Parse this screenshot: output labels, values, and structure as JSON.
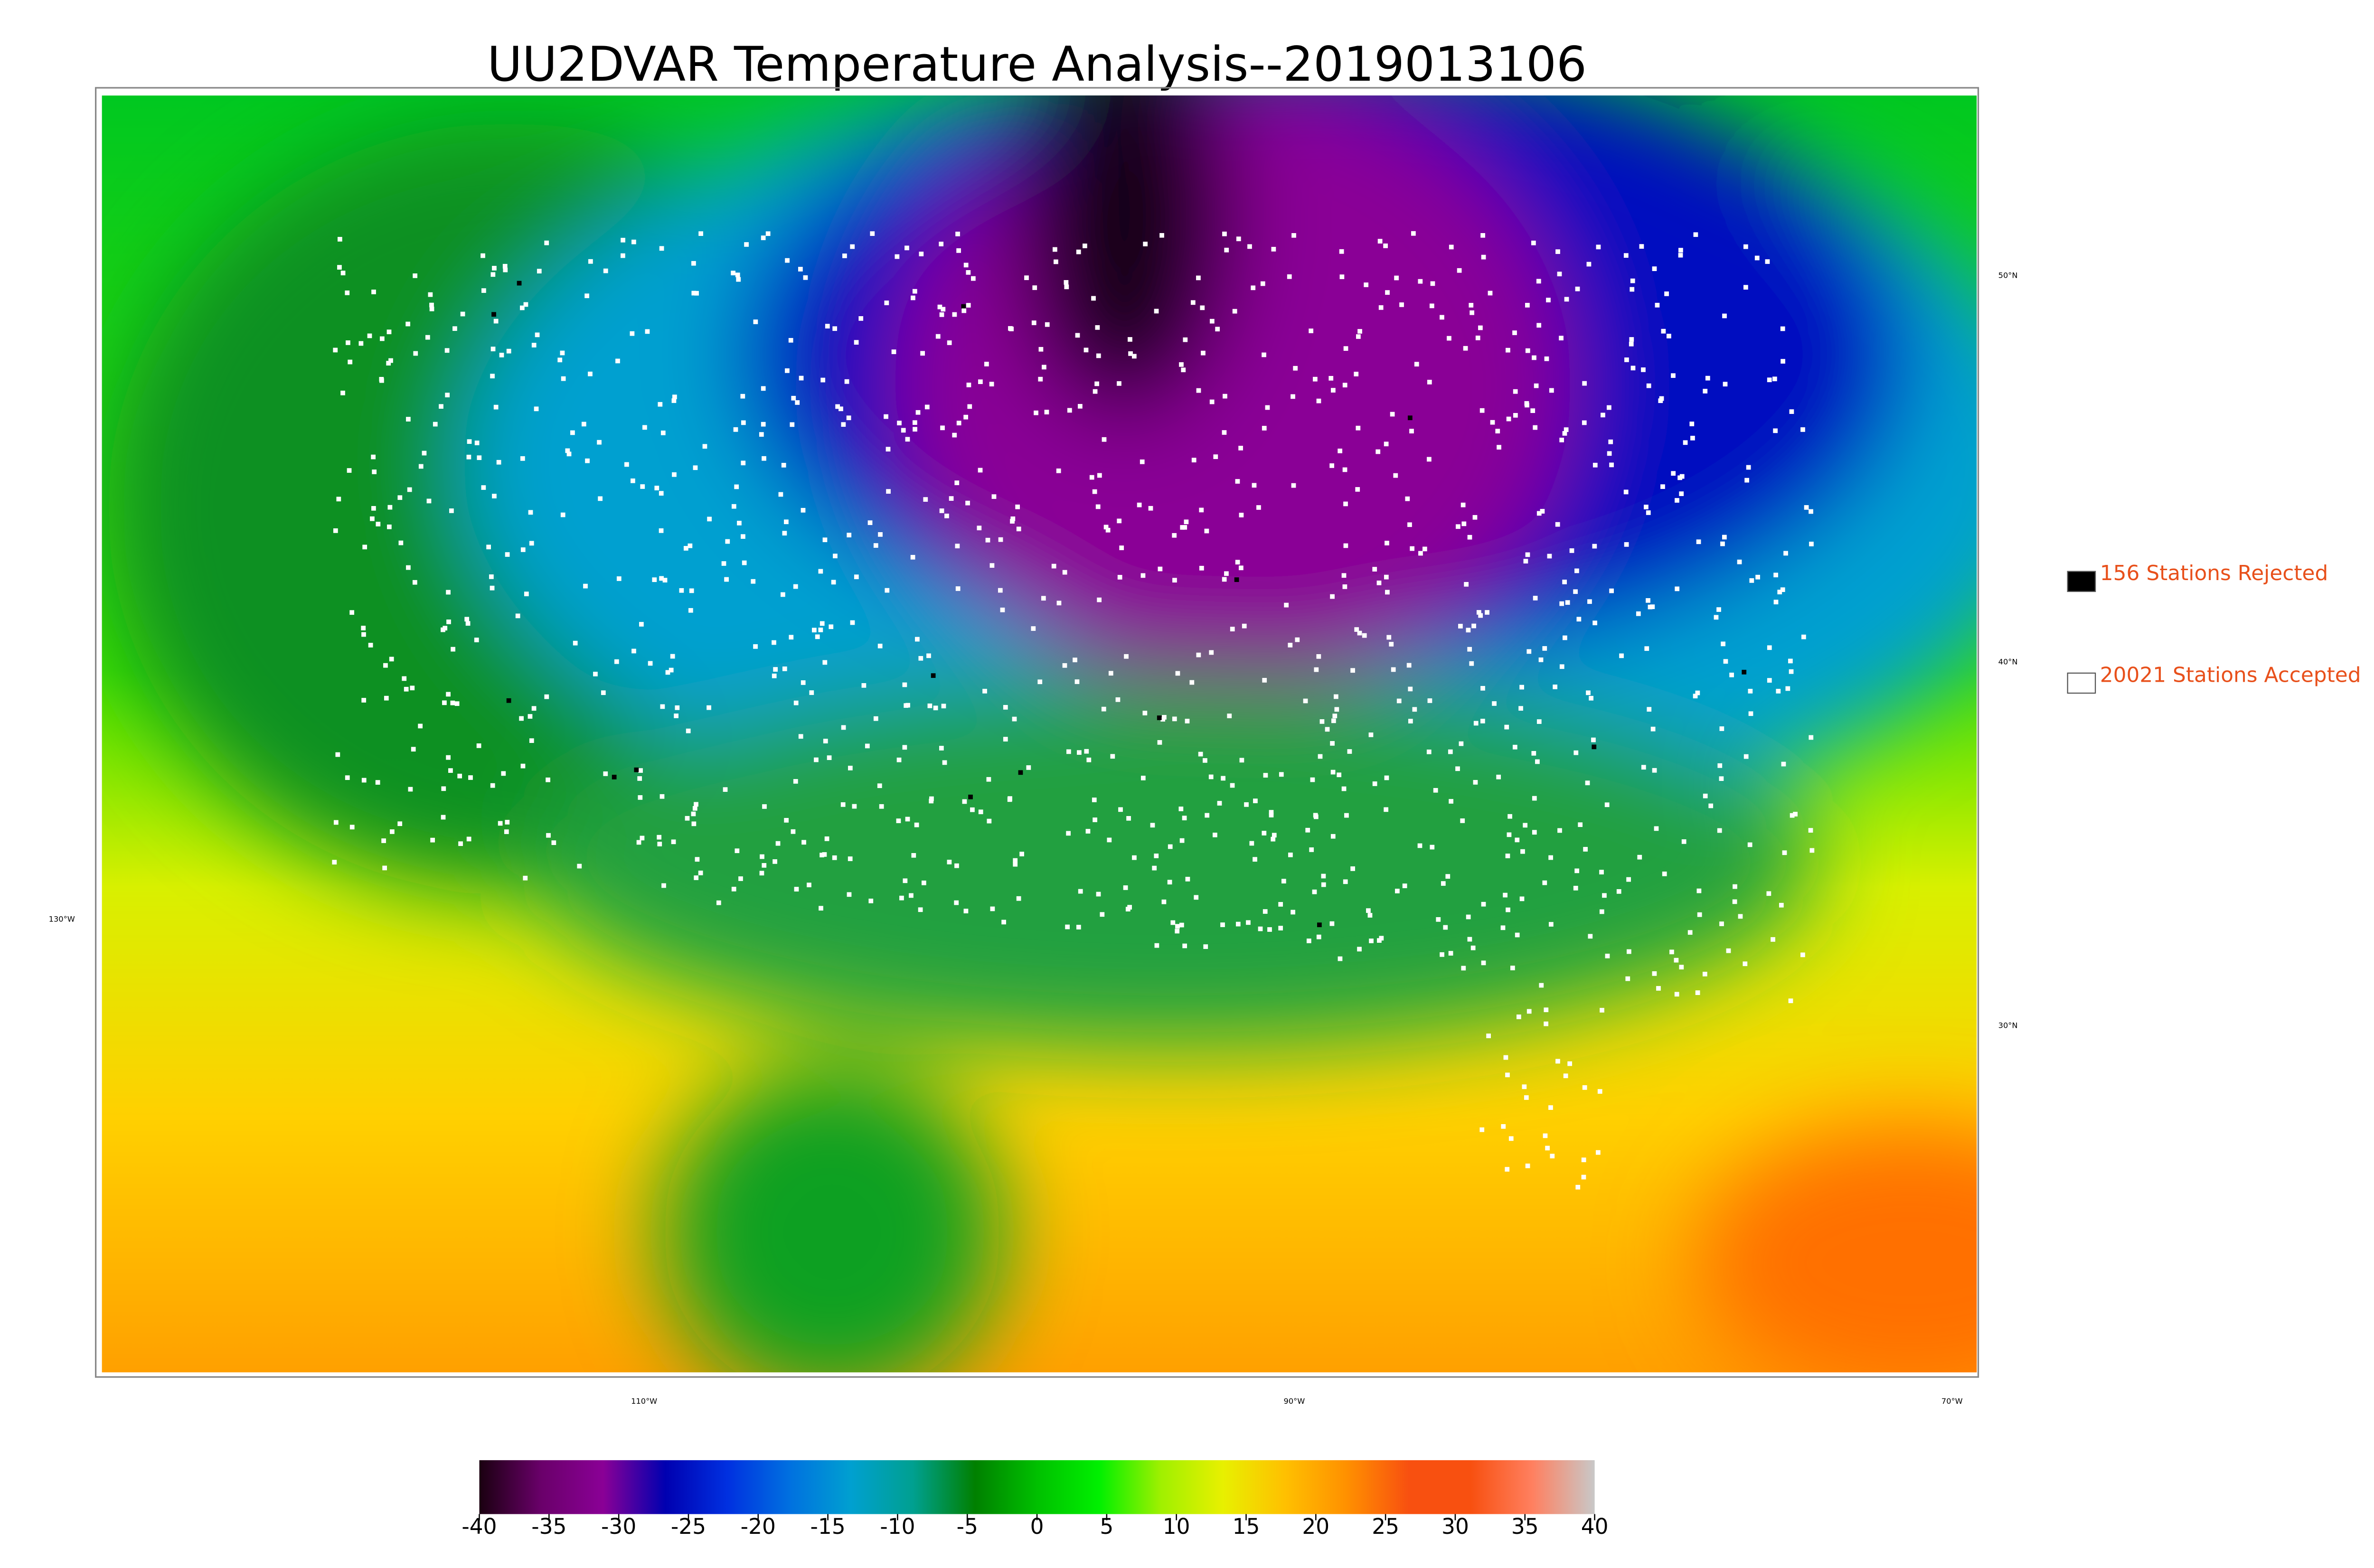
{
  "title": "UU2DVAR Temperature Analysis--2019013106",
  "map": {
    "latitude_labels": [
      "50°N",
      "40°N",
      "30°N"
    ],
    "longitude_labels": [
      "130°W",
      "110°W",
      "90°W",
      "70°W"
    ]
  },
  "legend": [
    {
      "label": "156 Stations Rejected",
      "color": "#000000"
    },
    {
      "label": "20021 Stations Accepted",
      "color": "#ffffff"
    }
  ],
  "colorbar": {
    "lim": [
      -40,
      40
    ],
    "ticks": [
      -40,
      -35,
      -30,
      -25,
      -20,
      -15,
      -10,
      -5,
      0,
      5,
      10,
      15,
      20,
      25,
      30,
      35,
      40
    ],
    "colors": [
      "#1a0010",
      "#6a006a",
      "#8a0096",
      "#0000b0",
      "#0030e0",
      "#0070e0",
      "#00a0d0",
      "#00a090",
      "#008000",
      "#00c000",
      "#00f000",
      "#a0f000",
      "#e8f000",
      "#ffc000",
      "#ff9000",
      "#f85010",
      "#f85010",
      "#ff8060",
      "#c8c8c8"
    ]
  }
}
